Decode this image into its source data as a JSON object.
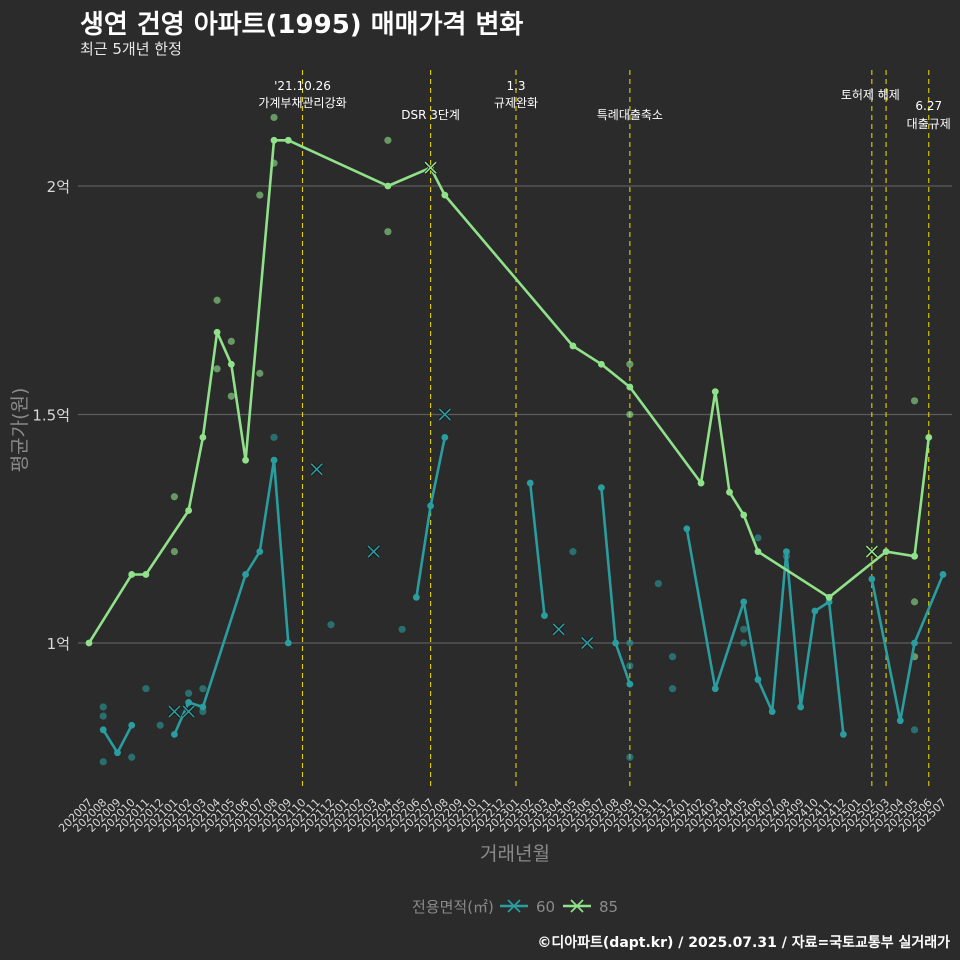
{
  "title": "생연 건영 아파트(1995) 매매가격 변화",
  "subtitle": "최근 5개년 한정",
  "caption": "©디아파트(dapt.kr) / 2025.07.31 / 자료=국토교통부 실거래가",
  "chart_data": {
    "type": "line",
    "xlabel": "거래년월",
    "ylabel": "평균가(원)",
    "x_ticks": [
      "202007",
      "202008",
      "202009",
      "202010",
      "202011",
      "202012",
      "202101",
      "202102",
      "202103",
      "202104",
      "202105",
      "202106",
      "202107",
      "202108",
      "202109",
      "202110",
      "202111",
      "202112",
      "202201",
      "202202",
      "202203",
      "202204",
      "202205",
      "202206",
      "202207",
      "202208",
      "202209",
      "202210",
      "202211",
      "202212",
      "202301",
      "202302",
      "202303",
      "202304",
      "202305",
      "202306",
      "202307",
      "202308",
      "202309",
      "202310",
      "202311",
      "202312",
      "202401",
      "202402",
      "202403",
      "202404",
      "202405",
      "202406",
      "202407",
      "202408",
      "202409",
      "202410",
      "202411",
      "202412",
      "202501",
      "202502",
      "202503",
      "202504",
      "202505",
      "202506",
      "202507"
    ],
    "y_ticks": [
      {
        "value": 1.0,
        "label": "1억"
      },
      {
        "value": 1.5,
        "label": "1.5억"
      },
      {
        "value": 2.0,
        "label": "2억"
      }
    ],
    "ylim": [
      0.67,
      2.32
    ],
    "y_unit": "억",
    "grid": "horizontal",
    "legend": {
      "title": "전용면적(㎡)",
      "position": "bottom"
    },
    "series": [
      {
        "name": "60",
        "color": "#2a9d9f",
        "segments": [
          [
            [
              "202008",
              0.81
            ],
            [
              "202009",
              0.76
            ],
            [
              "202010",
              0.82
            ]
          ],
          [
            [
              "202101",
              0.8
            ],
            [
              "202102",
              0.87
            ],
            [
              "202103",
              0.86
            ],
            [
              "202106",
              1.15
            ],
            [
              "202107",
              1.2
            ],
            [
              "202108",
              1.4
            ],
            [
              "202109",
              1.0
            ]
          ],
          [
            [
              "202206",
              1.1
            ],
            [
              "202207",
              1.3
            ],
            [
              "202208",
              1.45
            ]
          ],
          [
            [
              "202302",
              1.35
            ],
            [
              "202303",
              1.06
            ]
          ],
          [
            [
              "202307",
              1.34
            ],
            [
              "202308",
              1.0
            ],
            [
              "202309",
              0.91
            ]
          ],
          [
            [
              "202401",
              1.25
            ],
            [
              "202403",
              0.9
            ],
            [
              "202405",
              1.09
            ],
            [
              "202406",
              0.92
            ],
            [
              "202407",
              0.85
            ],
            [
              "202408",
              1.2
            ],
            [
              "202409",
              0.86
            ],
            [
              "202410",
              1.07
            ],
            [
              "202411",
              1.09
            ],
            [
              "202412",
              0.8
            ]
          ],
          [
            [
              "202502",
              1.14
            ],
            [
              "202504",
              0.83
            ],
            [
              "202505",
              1.0
            ],
            [
              "202507",
              1.15
            ]
          ]
        ],
        "single_points": [
          [
            "202101",
            0.85
          ],
          [
            "202102",
            0.85
          ],
          [
            "202111",
            1.38
          ],
          [
            "202203",
            1.2
          ],
          [
            "202208",
            1.5
          ],
          [
            "202304",
            1.03
          ],
          [
            "202306",
            1.0
          ]
        ],
        "raw_points": [
          [
            "202008",
            0.86
          ],
          [
            "202008",
            0.84
          ],
          [
            "202008",
            0.74
          ],
          [
            "202010",
            0.75
          ],
          [
            "202011",
            0.9
          ],
          [
            "202012",
            0.82
          ],
          [
            "202102",
            0.89
          ],
          [
            "202103",
            0.9
          ],
          [
            "202103",
            0.85
          ],
          [
            "202108",
            1.45
          ],
          [
            "202112",
            1.04
          ],
          [
            "202205",
            1.03
          ],
          [
            "202305",
            1.2
          ],
          [
            "202309",
            1.0
          ],
          [
            "202309",
            0.95
          ],
          [
            "202309",
            0.75
          ],
          [
            "202311",
            1.13
          ],
          [
            "202312",
            0.97
          ],
          [
            "202312",
            0.9
          ],
          [
            "202405",
            1.03
          ],
          [
            "202405",
            1.0
          ],
          [
            "202406",
            1.23
          ],
          [
            "202408",
            1.19
          ],
          [
            "202505",
            1.19
          ],
          [
            "202505",
            0.81
          ]
        ]
      },
      {
        "name": "85",
        "color": "#90e28a",
        "segments": [
          [
            [
              "202007",
              1.0
            ],
            [
              "202010",
              1.15
            ],
            [
              "202011",
              1.15
            ],
            [
              "202102",
              1.29
            ],
            [
              "202103",
              1.45
            ],
            [
              "202104",
              1.68
            ],
            [
              "202105",
              1.61
            ],
            [
              "202106",
              1.4
            ],
            [
              "202108",
              2.1
            ],
            [
              "202109",
              2.1
            ],
            [
              "202204",
              2.0
            ],
            [
              "202207",
              2.04
            ],
            [
              "202208",
              1.98
            ],
            [
              "202305",
              1.65
            ],
            [
              "202307",
              1.61
            ],
            [
              "202309",
              1.56
            ],
            [
              "202402",
              1.35
            ],
            [
              "202403",
              1.55
            ],
            [
              "202404",
              1.33
            ],
            [
              "202405",
              1.28
            ],
            [
              "202406",
              1.2
            ],
            [
              "202411",
              1.1
            ],
            [
              "202503",
              1.2
            ],
            [
              "202505",
              1.19
            ],
            [
              "202506",
              1.45
            ]
          ]
        ],
        "single_points": [
          [
            "202207",
            2.04
          ],
          [
            "202502",
            1.2
          ]
        ],
        "raw_points": [
          [
            "202101",
            1.32
          ],
          [
            "202101",
            1.2
          ],
          [
            "202104",
            1.75
          ],
          [
            "202104",
            1.6
          ],
          [
            "202105",
            1.66
          ],
          [
            "202105",
            1.54
          ],
          [
            "202107",
            1.98
          ],
          [
            "202107",
            1.59
          ],
          [
            "202108",
            2.15
          ],
          [
            "202108",
            2.05
          ],
          [
            "202204",
            2.1
          ],
          [
            "202204",
            1.9
          ],
          [
            "202309",
            1.61
          ],
          [
            "202309",
            1.5
          ],
          [
            "202505",
            1.53
          ],
          [
            "202505",
            1.09
          ],
          [
            "202505",
            0.97
          ]
        ]
      }
    ],
    "annotations": [
      {
        "x": "202110",
        "lines": [
          "'21.10.26",
          "가계부채관리강화"
        ]
      },
      {
        "x": "202207",
        "lines": [
          "DSR 3단계"
        ]
      },
      {
        "x": "202301",
        "lines": [
          "1.3",
          "규제완화"
        ]
      },
      {
        "x": "202309",
        "lines": [
          "특례대출축소"
        ]
      },
      {
        "x": "202502",
        "lines": [
          "토허제 해제"
        ]
      },
      {
        "x": "202503",
        "lines": []
      },
      {
        "x": "202506",
        "lines": [
          "6.27",
          "대출규제"
        ]
      }
    ]
  }
}
